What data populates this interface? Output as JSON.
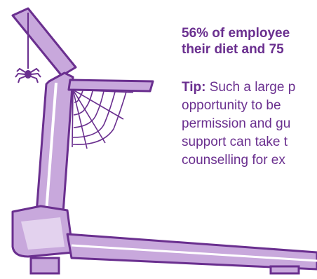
{
  "headline": {
    "line1": "56% of employee",
    "line2": "their diet and 75"
  },
  "tip": {
    "label": "Tip:",
    "line1": " Such a large p",
    "line2": "opportunity to be",
    "line3": "permission and gu",
    "line4": "support can take t",
    "line5": "counselling for ex"
  },
  "colors": {
    "accent_purple": "#6a2f8f",
    "light_purple": "#c8a8dc",
    "white": "#ffffff"
  },
  "icons": {
    "spider": "spider-icon",
    "cobweb": "cobweb-icon",
    "treadmill": "treadmill-icon"
  }
}
